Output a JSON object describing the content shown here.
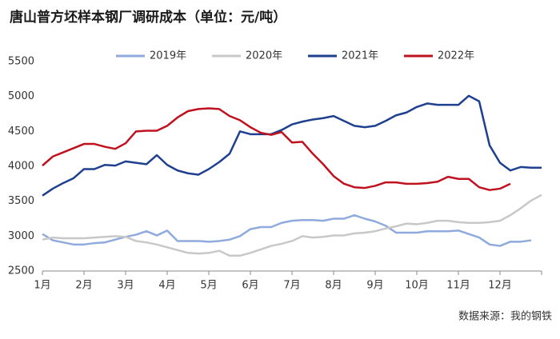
{
  "chart_data": {
    "type": "line",
    "title": "唐山普方坯样本钢厂调研成本（单位：元/吨）",
    "source": "数据来源：我的钢铁",
    "x": [
      1,
      1.25,
      1.5,
      1.75,
      2,
      2.25,
      2.5,
      2.75,
      3,
      3.25,
      3.5,
      3.75,
      4,
      4.25,
      4.5,
      4.75,
      5,
      5.25,
      5.5,
      5.75,
      6,
      6.25,
      6.5,
      6.75,
      7,
      7.25,
      7.5,
      7.75,
      8,
      8.25,
      8.5,
      8.75,
      9,
      9.25,
      9.5,
      9.75,
      10,
      10.25,
      10.5,
      10.75,
      11,
      11.25,
      11.5,
      11.75,
      12,
      12.25,
      12.5,
      12.75,
      13
    ],
    "xlim": [
      1,
      13
    ],
    "xticks": [
      {
        "value": 1,
        "label": "1月"
      },
      {
        "value": 2,
        "label": "2月"
      },
      {
        "value": 3,
        "label": "3月"
      },
      {
        "value": 4,
        "label": "4月"
      },
      {
        "value": 5,
        "label": "5月"
      },
      {
        "value": 6,
        "label": "6月"
      },
      {
        "value": 7,
        "label": "7月"
      },
      {
        "value": 8,
        "label": "8月"
      },
      {
        "value": 9,
        "label": "9月"
      },
      {
        "value": 10,
        "label": "10月"
      },
      {
        "value": 11,
        "label": "11月"
      },
      {
        "value": 12,
        "label": "12月"
      }
    ],
    "ylim": [
      2500,
      5500
    ],
    "yticks": [
      2500,
      3000,
      3500,
      4000,
      4500,
      5000,
      5500
    ],
    "grid": false,
    "legend": "top",
    "series": [
      {
        "name": "2019年",
        "color": "#8faadc",
        "values": [
          3030,
          2940,
          2910,
          2880,
          2880,
          2900,
          2910,
          2950,
          2990,
          3020,
          3070,
          3010,
          3080,
          2930,
          2930,
          2930,
          2920,
          2930,
          2950,
          3000,
          3100,
          3130,
          3130,
          3190,
          3220,
          3230,
          3230,
          3220,
          3250,
          3250,
          3300,
          3250,
          3210,
          3150,
          3050,
          3050,
          3050,
          3070,
          3070,
          3070,
          3080,
          3030,
          2980,
          2880,
          2860,
          2920,
          2920,
          2940,
          null
        ]
      },
      {
        "name": "2020年",
        "color": "#c8c8c8",
        "values": [
          2950,
          2980,
          2970,
          2970,
          2970,
          2980,
          2990,
          3000,
          2990,
          2930,
          2910,
          2880,
          2840,
          2800,
          2760,
          2750,
          2760,
          2790,
          2720,
          2720,
          2760,
          2810,
          2860,
          2890,
          2930,
          3000,
          2980,
          2990,
          3010,
          3010,
          3040,
          3050,
          3070,
          3110,
          3140,
          3180,
          3170,
          3190,
          3220,
          3220,
          3200,
          3190,
          3190,
          3200,
          3220,
          3300,
          3400,
          3510,
          3590
        ]
      },
      {
        "name": "2021年",
        "color": "#1f3f8f",
        "values": [
          3580,
          3680,
          3760,
          3830,
          3960,
          3960,
          4020,
          4010,
          4070,
          4050,
          4030,
          4160,
          4020,
          3940,
          3900,
          3880,
          3960,
          4060,
          4180,
          4500,
          4460,
          4460,
          4460,
          4520,
          4600,
          4640,
          4670,
          4690,
          4720,
          4650,
          4580,
          4560,
          4580,
          4650,
          4730,
          4770,
          4850,
          4900,
          4880,
          4880,
          4880,
          5010,
          4930,
          4300,
          4050,
          3940,
          3990,
          3980,
          3980
        ]
      },
      {
        "name": "2022年",
        "color": "#c0111f",
        "values": [
          4010,
          4140,
          4200,
          4260,
          4320,
          4320,
          4280,
          4250,
          4330,
          4500,
          4510,
          4510,
          4580,
          4700,
          4790,
          4820,
          4830,
          4820,
          4720,
          4660,
          4560,
          4480,
          4450,
          4490,
          4340,
          4350,
          4180,
          4030,
          3860,
          3750,
          3700,
          3690,
          3720,
          3770,
          3770,
          3750,
          3750,
          3760,
          3780,
          3850,
          3820,
          3820,
          3700,
          3660,
          3680,
          3750,
          null,
          null,
          null
        ]
      }
    ]
  }
}
